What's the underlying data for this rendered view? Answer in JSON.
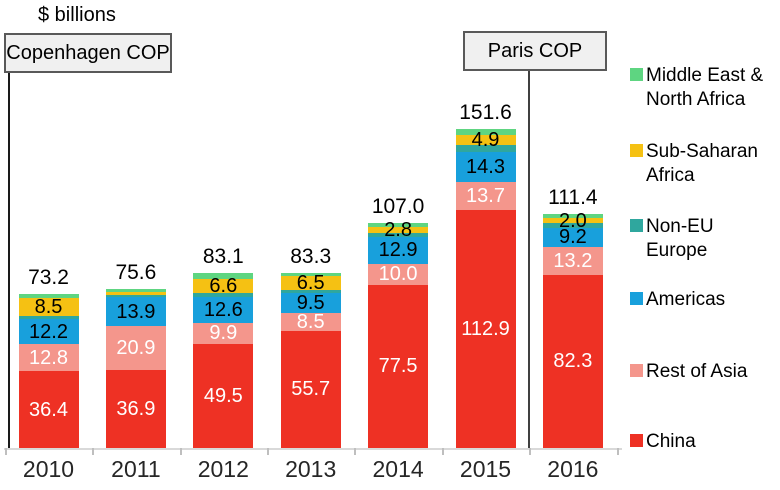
{
  "chart_data": {
    "type": "bar",
    "stacked": true,
    "title": "$ billions",
    "unit": "$ billions",
    "categories": [
      "2010",
      "2011",
      "2012",
      "2013",
      "2014",
      "2015",
      "2016"
    ],
    "totals": [
      "73.2",
      "75.6",
      "83.1",
      "83.3",
      "107.0",
      "151.6",
      "111.4"
    ],
    "series": [
      {
        "name": "China",
        "legend_label": "China",
        "color": "#ee3124",
        "label_color": "#ffffff",
        "values": [
          36.4,
          36.9,
          49.5,
          55.7,
          77.5,
          112.9,
          82.3
        ],
        "labeled": [
          true,
          true,
          true,
          true,
          true,
          true,
          true
        ]
      },
      {
        "name": "Rest of Asia",
        "legend_label": "Rest of Asia",
        "color": "#f4968c",
        "label_color": "#ffffff",
        "values": [
          12.8,
          20.9,
          9.9,
          8.5,
          10.0,
          13.7,
          13.2
        ],
        "labeled": [
          true,
          true,
          true,
          true,
          true,
          true,
          true
        ]
      },
      {
        "name": "Americas",
        "legend_label": "Americas",
        "color": "#18a0dc",
        "label_color": "#000000",
        "values": [
          12.2,
          13.9,
          12.6,
          9.5,
          12.9,
          14.3,
          9.2
        ],
        "labeled": [
          true,
          true,
          true,
          true,
          true,
          true,
          true
        ]
      },
      {
        "name": "Non-EU Europe",
        "legend_label": "Non-EU\nEurope",
        "color": "#2fa79e",
        "label_color": "#000000",
        "values": [
          1.4,
          1.2,
          1.8,
          1.6,
          1.9,
          2.9,
          2.4
        ],
        "labeled": [
          false,
          false,
          false,
          false,
          false,
          false,
          false
        ]
      },
      {
        "name": "Sub-Saharan Africa",
        "legend_label": "Sub-Saharan\nAfrica",
        "color": "#f5c113",
        "label_color": "#000000",
        "values": [
          8.5,
          1.5,
          6.6,
          6.5,
          2.8,
          4.9,
          2.0
        ],
        "labeled": [
          true,
          false,
          true,
          true,
          true,
          true,
          true
        ]
      },
      {
        "name": "Middle East & North Africa",
        "legend_label": "Middle East &\nNorth Africa",
        "color": "#5ed581",
        "label_color": "#000000",
        "values": [
          1.9,
          1.2,
          2.7,
          1.5,
          1.9,
          2.9,
          2.3
        ],
        "labeled": [
          false,
          false,
          false,
          false,
          false,
          false,
          false
        ]
      }
    ],
    "annotations": [
      {
        "label": "Copenhagen COP",
        "position": "before 2010"
      },
      {
        "label": "Paris COP",
        "position": "between 2015 and 2016"
      }
    ],
    "legend_position": "right",
    "legend_order_top_to_bottom": [
      "Middle East & North Africa",
      "Sub-Saharan Africa",
      "Non-EU Europe",
      "Americas",
      "Rest of Asia",
      "China"
    ],
    "ylim": [
      0,
      160
    ],
    "grid": false
  }
}
